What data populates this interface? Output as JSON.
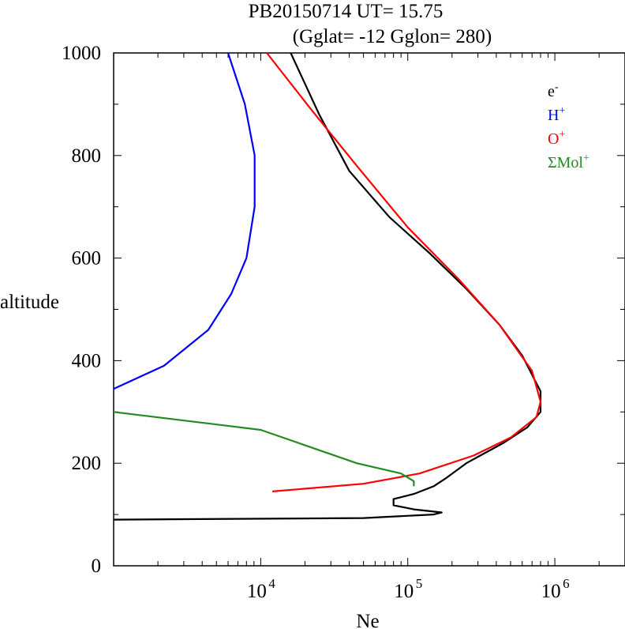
{
  "chart_data": {
    "type": "line",
    "title": "PB20150714   UT=  15.75",
    "subtitle": "(Gglat= -12   Gglon=  280)",
    "xlabel": "Ne",
    "ylabel": "altitude",
    "xscale": "log",
    "xlim": [
      1000,
      3000000
    ],
    "ylim": [
      0,
      1000
    ],
    "x_ticks": [
      {
        "base": "10",
        "exp": "4",
        "value": 10000
      },
      {
        "base": "10",
        "exp": "5",
        "value": 100000
      },
      {
        "base": "10",
        "exp": "6",
        "value": 1000000
      }
    ],
    "y_ticks": [
      "0",
      "200",
      "400",
      "600",
      "800",
      "1000"
    ],
    "grid": false,
    "legend_position": "top-right",
    "series": [
      {
        "name": "e-",
        "legend_base": "e",
        "legend_sup": "-",
        "color": "#000000",
        "points": [
          [
            1000,
            90
          ],
          [
            50000,
            93
          ],
          [
            150000,
            100
          ],
          [
            170000,
            104
          ],
          [
            110000,
            110
          ],
          [
            80000,
            118
          ],
          [
            80000,
            130
          ],
          [
            110000,
            140
          ],
          [
            150000,
            155
          ],
          [
            180000,
            170
          ],
          [
            250000,
            200
          ],
          [
            450000,
            240
          ],
          [
            650000,
            270
          ],
          [
            800000,
            300
          ],
          [
            800000,
            340
          ],
          [
            600000,
            410
          ],
          [
            420000,
            470
          ],
          [
            250000,
            540
          ],
          [
            140000,
            610
          ],
          [
            75000,
            680
          ],
          [
            40000,
            770
          ],
          [
            25000,
            880
          ],
          [
            16000,
            1000
          ]
        ]
      },
      {
        "name": "H+",
        "legend_base": "H",
        "legend_sup": "+",
        "color": "#0000ff",
        "points": [
          [
            1000,
            345
          ],
          [
            2200,
            390
          ],
          [
            4400,
            460
          ],
          [
            6300,
            530
          ],
          [
            8000,
            600
          ],
          [
            9100,
            700
          ],
          [
            9100,
            800
          ],
          [
            7800,
            900
          ],
          [
            6000,
            1000
          ]
        ]
      },
      {
        "name": "O+",
        "legend_base": "O",
        "legend_sup": "+",
        "color": "#ff0000",
        "points": [
          [
            12000,
            145
          ],
          [
            50000,
            160
          ],
          [
            120000,
            180
          ],
          [
            280000,
            215
          ],
          [
            500000,
            250
          ],
          [
            750000,
            290
          ],
          [
            800000,
            320
          ],
          [
            700000,
            380
          ],
          [
            420000,
            470
          ],
          [
            220000,
            560
          ],
          [
            100000,
            660
          ],
          [
            45000,
            780
          ],
          [
            22000,
            890
          ],
          [
            11000,
            1000
          ]
        ]
      },
      {
        "name": "ΣMol+",
        "legend_base": "ΣMol",
        "legend_sup": "+",
        "color": "#228b22",
        "points": [
          [
            1000,
            300
          ],
          [
            10000,
            265
          ],
          [
            45000,
            200
          ],
          [
            90000,
            180
          ],
          [
            110000,
            165
          ],
          [
            110000,
            155
          ]
        ]
      }
    ]
  }
}
